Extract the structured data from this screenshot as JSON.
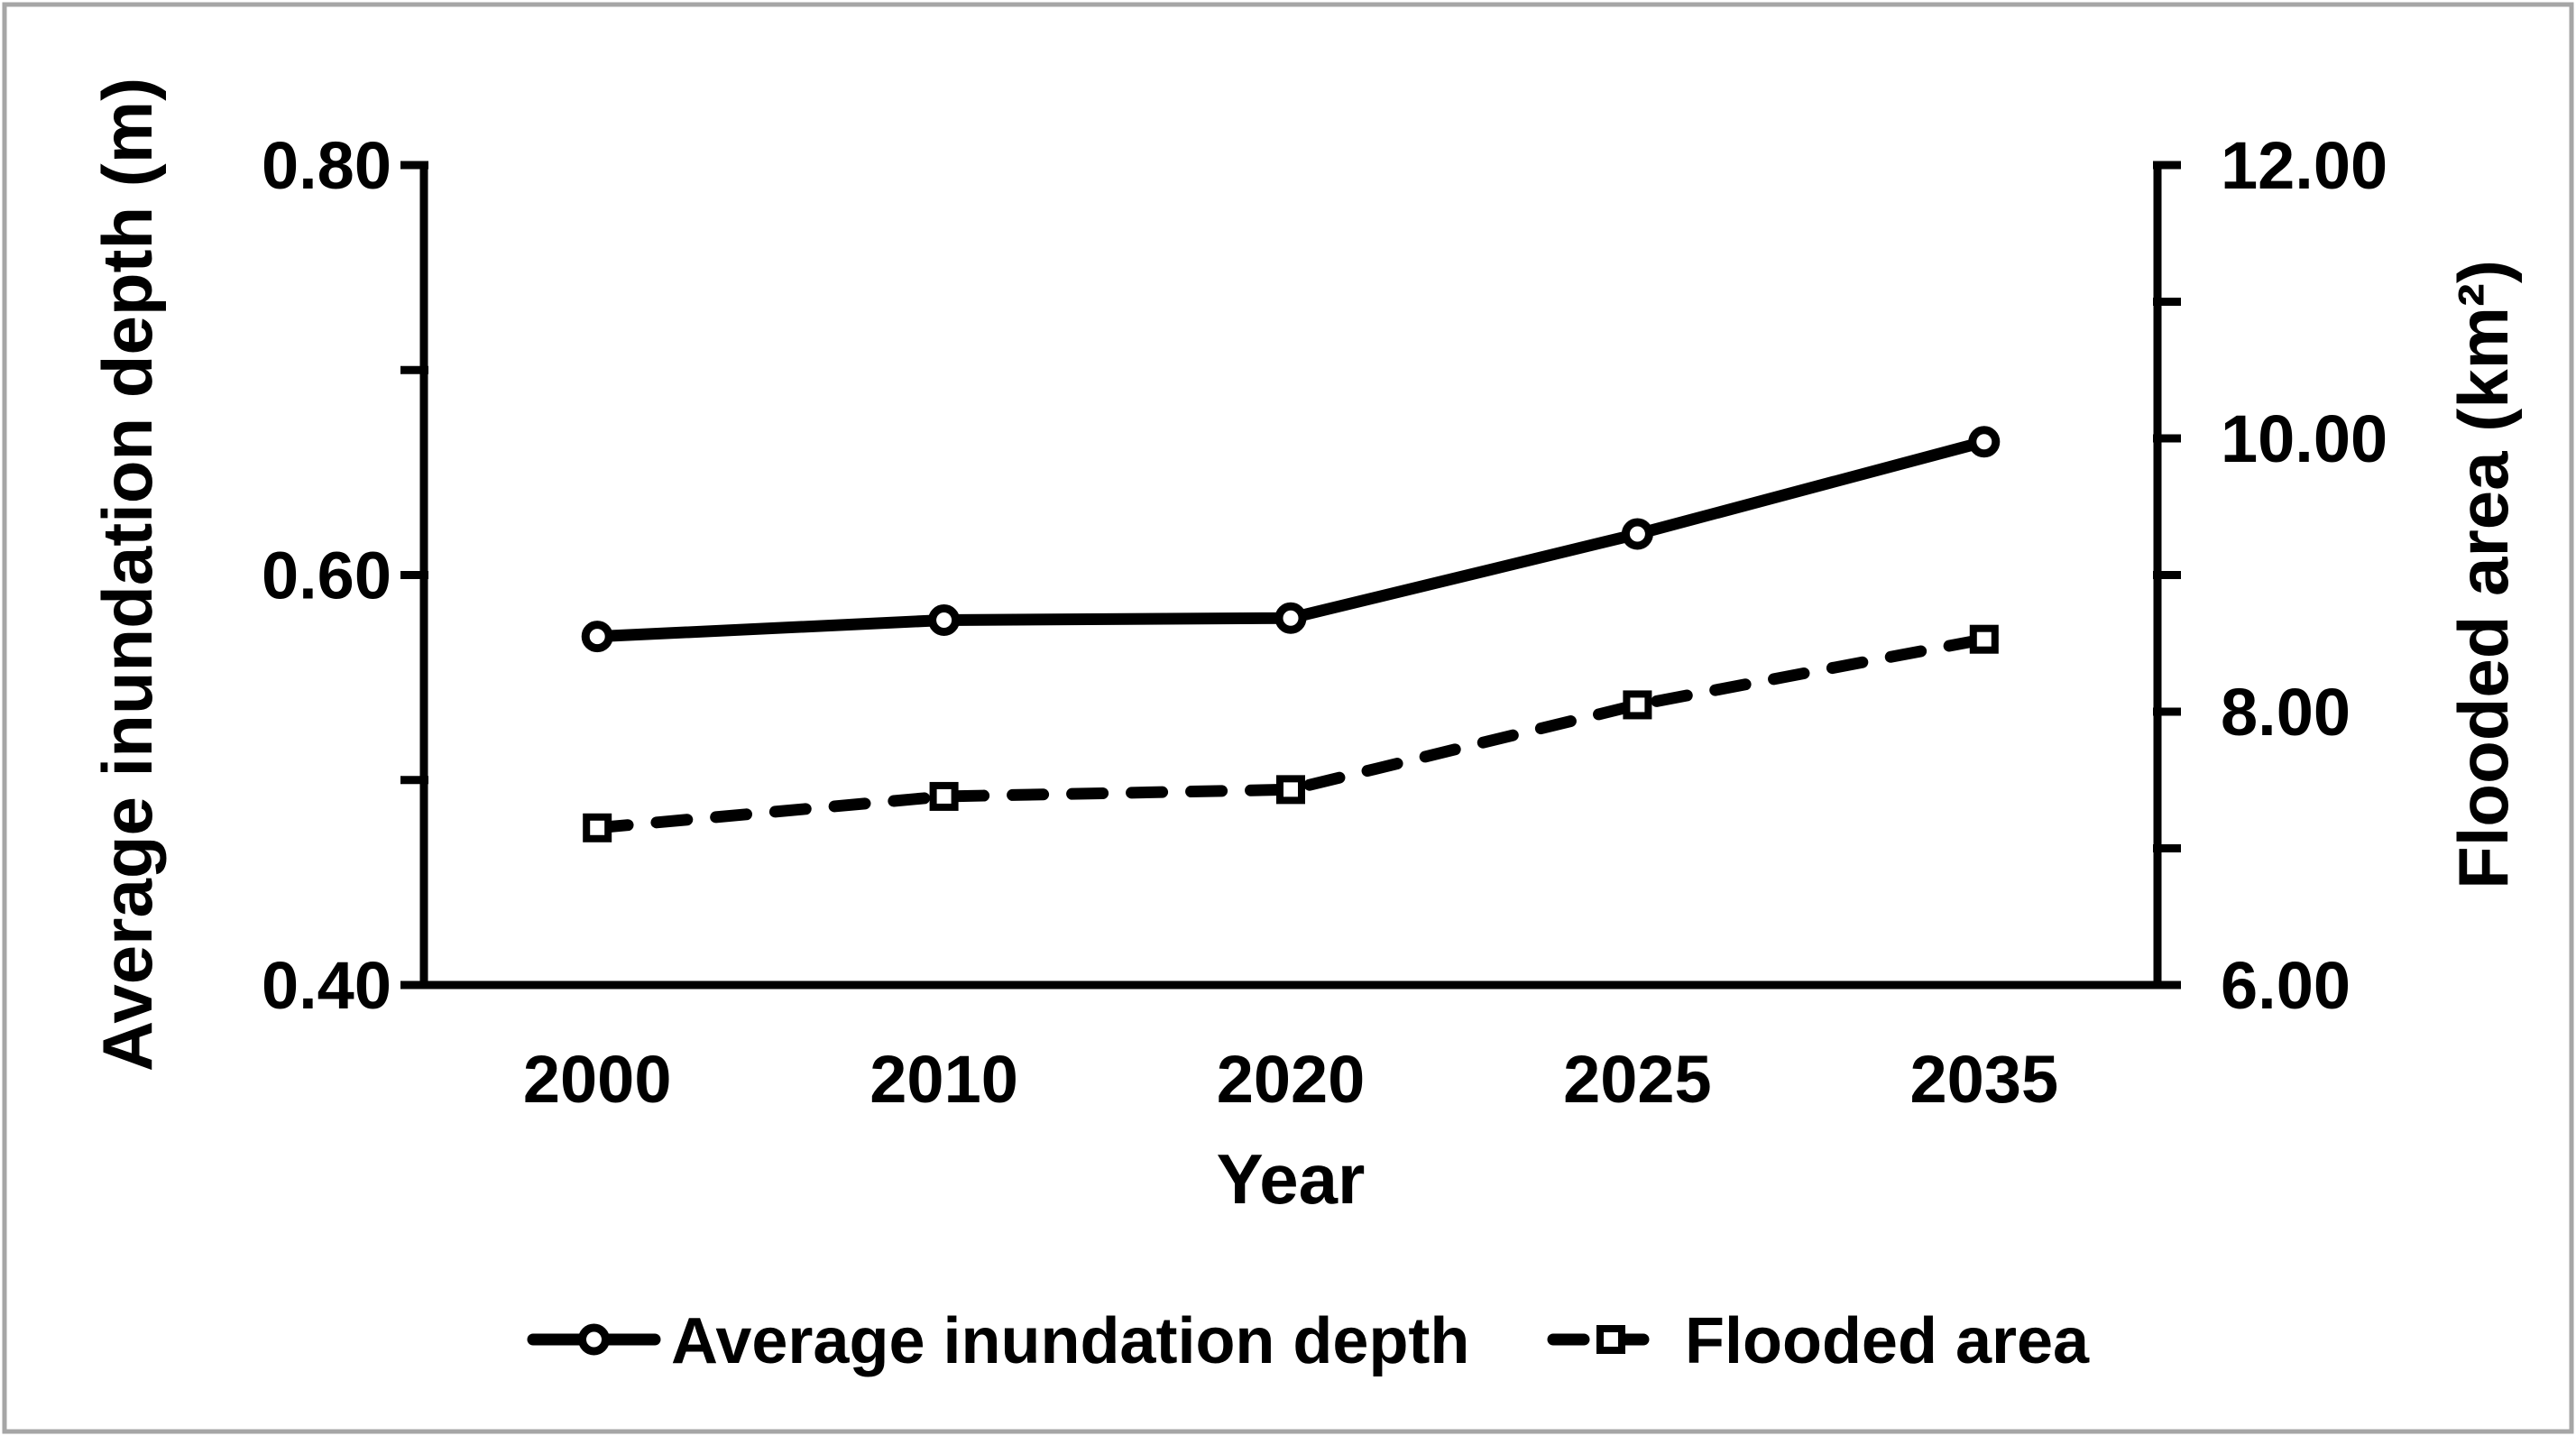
{
  "figure": {
    "kind": "dual-axis line chart",
    "background_color": "#ffffff",
    "frame_border_color": "#a6a6a6",
    "line_color": "#000000"
  },
  "chart_data": {
    "type": "line",
    "title": "",
    "categories": [
      "2000",
      "2010",
      "2020",
      "2025",
      "2035"
    ],
    "xlabel": "Year",
    "series": [
      {
        "name": "Average inundation depth",
        "axis": "left",
        "line_style": "solid",
        "marker": "circle",
        "values": [
          0.57,
          0.578,
          0.579,
          0.62,
          0.665
        ]
      },
      {
        "name": "Flooded area",
        "axis": "right",
        "line_style": "dashed",
        "marker": "square",
        "values": [
          7.15,
          7.38,
          7.43,
          8.05,
          8.53
        ]
      }
    ],
    "left_axis": {
      "label": "Average inundation depth (m)",
      "min": 0.4,
      "max": 0.8,
      "major_ticks": [
        {
          "value": 0.8,
          "label": "0.80"
        },
        {
          "value": 0.6,
          "label": "0.60"
        },
        {
          "value": 0.4,
          "label": "0.40"
        }
      ],
      "minor_ticks": [
        0.7,
        0.5
      ]
    },
    "right_axis": {
      "label": "Flooded area (km²)",
      "min": 6.0,
      "max": 12.0,
      "major_ticks": [
        {
          "value": 12.0,
          "label": "12.00"
        },
        {
          "value": 10.0,
          "label": "10.00"
        },
        {
          "value": 8.0,
          "label": "8.00"
        },
        {
          "value": 6.0,
          "label": "6.00"
        }
      ],
      "minor_ticks": [
        11.0,
        9.0,
        7.0
      ]
    },
    "legend": {
      "position": "bottom",
      "entries": [
        "Average inundation depth",
        "Flooded area"
      ]
    },
    "grid": false
  }
}
